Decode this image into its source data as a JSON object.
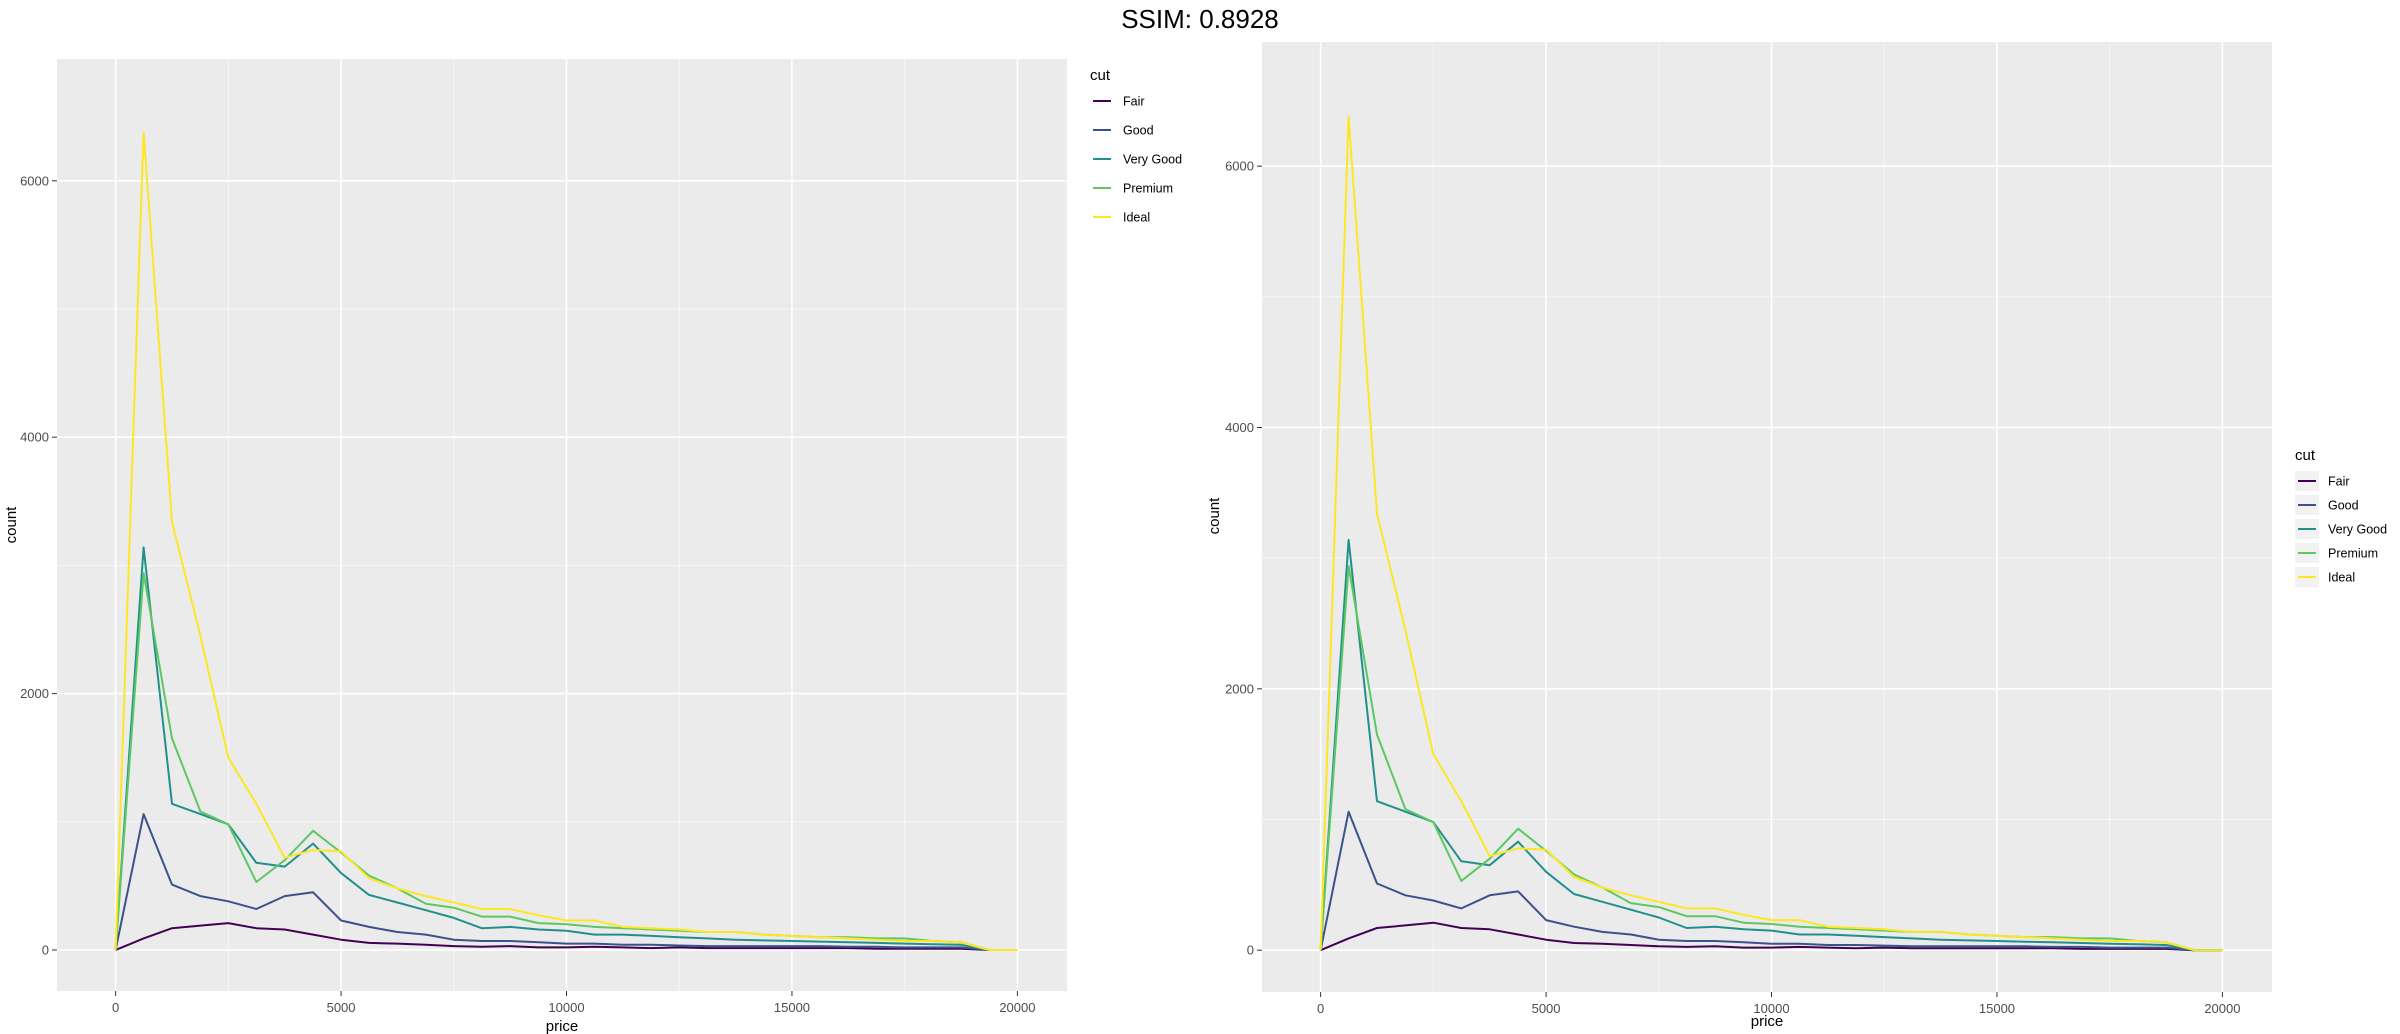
{
  "header": {
    "title": "SSIM: 0.8928"
  },
  "colors": {
    "panel": "#ebebeb",
    "grid": "#ffffff",
    "text": "#4d4d4d",
    "series": [
      "#440154",
      "#3b528b",
      "#21908c",
      "#5dc863",
      "#fde725"
    ]
  },
  "chart_data": [
    {
      "type": "line",
      "xlabel": "price",
      "ylabel": "count",
      "xlim": [
        -1300,
        21100
      ],
      "ylim": [
        -320,
        6950
      ],
      "x_ticks": [
        0,
        5000,
        10000,
        15000,
        20000
      ],
      "x_tick_labels": [
        "0",
        "5000",
        "10000",
        "15000",
        "20000"
      ],
      "y_ticks": [
        0,
        2000,
        4000,
        6000
      ],
      "y_tick_labels": [
        "0",
        "2000",
        "4000",
        "6000"
      ],
      "grid": true,
      "legend": {
        "title": "cut",
        "placement": "top-right",
        "entries": [
          "Fair",
          "Good",
          "Very Good",
          "Premium",
          "Ideal"
        ]
      },
      "x": [
        0,
        620,
        1250,
        1880,
        2500,
        3120,
        3750,
        4380,
        5000,
        5620,
        6250,
        6880,
        7500,
        8120,
        8750,
        9380,
        10000,
        10620,
        11250,
        11880,
        12500,
        13120,
        13750,
        14380,
        15000,
        15620,
        16250,
        16880,
        17500,
        18120,
        18750,
        19380,
        20000
      ],
      "series": [
        {
          "name": "Fair",
          "values": [
            0,
            90,
            170,
            190,
            210,
            170,
            160,
            120,
            80,
            55,
            50,
            40,
            30,
            25,
            30,
            20,
            20,
            25,
            20,
            15,
            20,
            15,
            15,
            15,
            15,
            15,
            15,
            10,
            10,
            10,
            10,
            0,
            0
          ]
        },
        {
          "name": "Good",
          "values": [
            0,
            1060,
            510,
            420,
            380,
            320,
            420,
            450,
            230,
            180,
            140,
            120,
            80,
            70,
            70,
            60,
            50,
            50,
            40,
            40,
            35,
            30,
            30,
            30,
            30,
            30,
            25,
            25,
            20,
            20,
            20,
            0,
            0
          ]
        },
        {
          "name": "Very Good",
          "values": [
            0,
            3140,
            1140,
            1060,
            980,
            680,
            650,
            830,
            600,
            430,
            370,
            310,
            250,
            170,
            180,
            160,
            150,
            120,
            120,
            110,
            100,
            90,
            80,
            75,
            70,
            65,
            60,
            55,
            50,
            45,
            40,
            0,
            0
          ]
        },
        {
          "name": "Premium",
          "values": [
            0,
            2940,
            1650,
            1080,
            980,
            530,
            700,
            930,
            760,
            580,
            480,
            360,
            330,
            260,
            260,
            210,
            200,
            180,
            170,
            160,
            150,
            140,
            140,
            120,
            110,
            100,
            100,
            90,
            90,
            70,
            60,
            0,
            0
          ]
        },
        {
          "name": "Ideal",
          "values": [
            0,
            6380,
            3340,
            2450,
            1500,
            1140,
            720,
            780,
            770,
            560,
            480,
            420,
            370,
            320,
            320,
            270,
            230,
            230,
            180,
            170,
            160,
            140,
            140,
            120,
            110,
            100,
            90,
            80,
            70,
            70,
            60,
            0,
            0
          ]
        }
      ]
    },
    {
      "type": "line",
      "xlabel": "price",
      "ylabel": "count",
      "xlim": [
        -1300,
        21100
      ],
      "ylim": [
        -320,
        6950
      ],
      "x_ticks": [
        0,
        5000,
        10000,
        15000,
        20000
      ],
      "x_tick_labels": [
        "0",
        "5000",
        "10000",
        "15000",
        "20000"
      ],
      "y_ticks": [
        0,
        2000,
        4000,
        6000
      ],
      "y_tick_labels": [
        "0",
        "2000",
        "4000",
        "6000"
      ],
      "grid": true,
      "legend": {
        "title": "cut",
        "placement": "right",
        "entries": [
          "Fair",
          "Good",
          "Very Good",
          "Premium",
          "Ideal"
        ]
      },
      "x": [
        0,
        620,
        1250,
        1880,
        2500,
        3120,
        3750,
        4380,
        5000,
        5620,
        6250,
        6880,
        7500,
        8120,
        8750,
        9380,
        10000,
        10620,
        11250,
        11880,
        12500,
        13120,
        13750,
        14380,
        15000,
        15620,
        16250,
        16880,
        17500,
        18120,
        18750,
        19380,
        20000
      ],
      "series": [
        {
          "name": "Fair",
          "values": [
            0,
            90,
            170,
            190,
            210,
            170,
            160,
            120,
            80,
            55,
            50,
            40,
            30,
            25,
            30,
            20,
            20,
            25,
            20,
            15,
            20,
            15,
            15,
            15,
            15,
            15,
            15,
            10,
            10,
            10,
            10,
            0,
            0
          ]
        },
        {
          "name": "Good",
          "values": [
            0,
            1060,
            510,
            420,
            380,
            320,
            420,
            450,
            230,
            180,
            140,
            120,
            80,
            70,
            70,
            60,
            50,
            50,
            40,
            40,
            35,
            30,
            30,
            30,
            30,
            30,
            25,
            25,
            20,
            20,
            20,
            0,
            0
          ]
        },
        {
          "name": "Very Good",
          "values": [
            0,
            3140,
            1140,
            1060,
            980,
            680,
            650,
            830,
            600,
            430,
            370,
            310,
            250,
            170,
            180,
            160,
            150,
            120,
            120,
            110,
            100,
            90,
            80,
            75,
            70,
            65,
            60,
            55,
            50,
            45,
            40,
            0,
            0
          ]
        },
        {
          "name": "Premium",
          "values": [
            0,
            2940,
            1650,
            1080,
            980,
            530,
            700,
            930,
            760,
            580,
            480,
            360,
            330,
            260,
            260,
            210,
            200,
            180,
            170,
            160,
            150,
            140,
            140,
            120,
            110,
            100,
            100,
            90,
            90,
            70,
            60,
            0,
            0
          ]
        },
        {
          "name": "Ideal",
          "values": [
            0,
            6380,
            3340,
            2450,
            1500,
            1140,
            720,
            780,
            770,
            560,
            480,
            420,
            370,
            320,
            320,
            270,
            230,
            230,
            180,
            170,
            160,
            140,
            140,
            120,
            110,
            100,
            90,
            80,
            70,
            70,
            60,
            0,
            0
          ]
        }
      ]
    }
  ]
}
